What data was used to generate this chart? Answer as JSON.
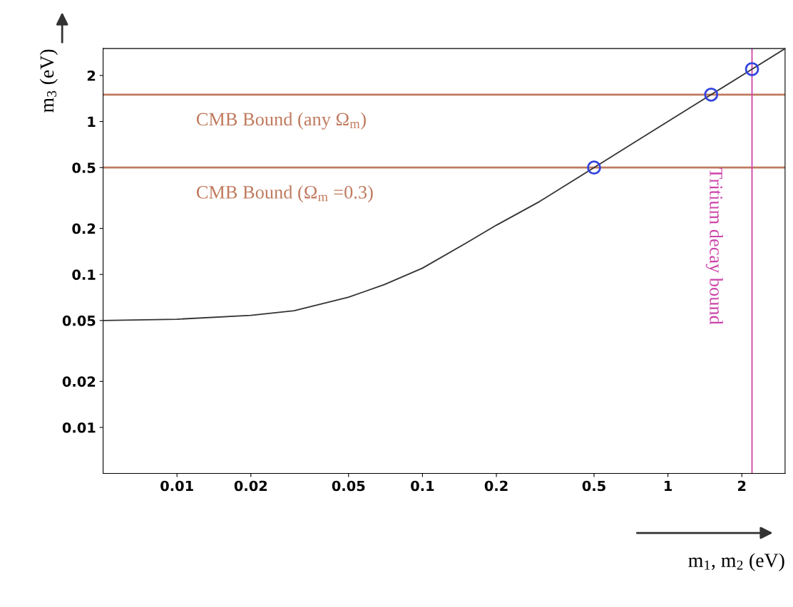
{
  "chart_data": {
    "type": "line",
    "xlabel": "m$_{1}$, m$_{2}$ (eV)",
    "ylabel": "m$_{3}$ (eV)",
    "log": "xy",
    "grid": false,
    "legend": false,
    "xlim": [
      0.005,
      3
    ],
    "ylim": [
      0.005,
      3
    ],
    "xticks": [
      0.01,
      0.02,
      0.05,
      0.1,
      0.2,
      0.5,
      1,
      2
    ],
    "yticks": [
      0.01,
      0.02,
      0.05,
      0.1,
      0.2,
      0.5,
      1,
      2
    ],
    "series": [
      {
        "color": "#333333",
        "marker": "none",
        "line_style": "solid",
        "x": [
          0.005,
          0.01,
          0.02,
          0.03,
          0.05,
          0.07,
          0.1,
          0.15,
          0.2,
          0.3,
          0.5,
          0.7,
          1,
          1.5,
          2,
          3
        ],
        "values": [
          0.05,
          0.051,
          0.054,
          0.058,
          0.071,
          0.086,
          0.11,
          0.16,
          0.21,
          0.3,
          0.5,
          0.7,
          1,
          1.5,
          2,
          3
        ]
      },
      {
        "type": "scatter",
        "color": "#3344dd",
        "marker": "circle",
        "x": [
          0.5,
          1.5,
          2.2
        ],
        "values": [
          0.5,
          1.5,
          2.2
        ]
      }
    ],
    "annotations": [
      "CMB Bound (any Ω$_{m}$)",
      "CMB Bound (Ω$_{m}$ =0.3)"
    ],
    "ref_lines": [
      {
        "axis": "y",
        "value": 1.5,
        "color": "#c07a5e"
      },
      {
        "axis": "y",
        "value": 0.5,
        "color": "#c07a5e"
      },
      {
        "axis": "x",
        "value": 2.2,
        "label": "Tritium decay bound",
        "color": "#cc44aa"
      }
    ]
  }
}
